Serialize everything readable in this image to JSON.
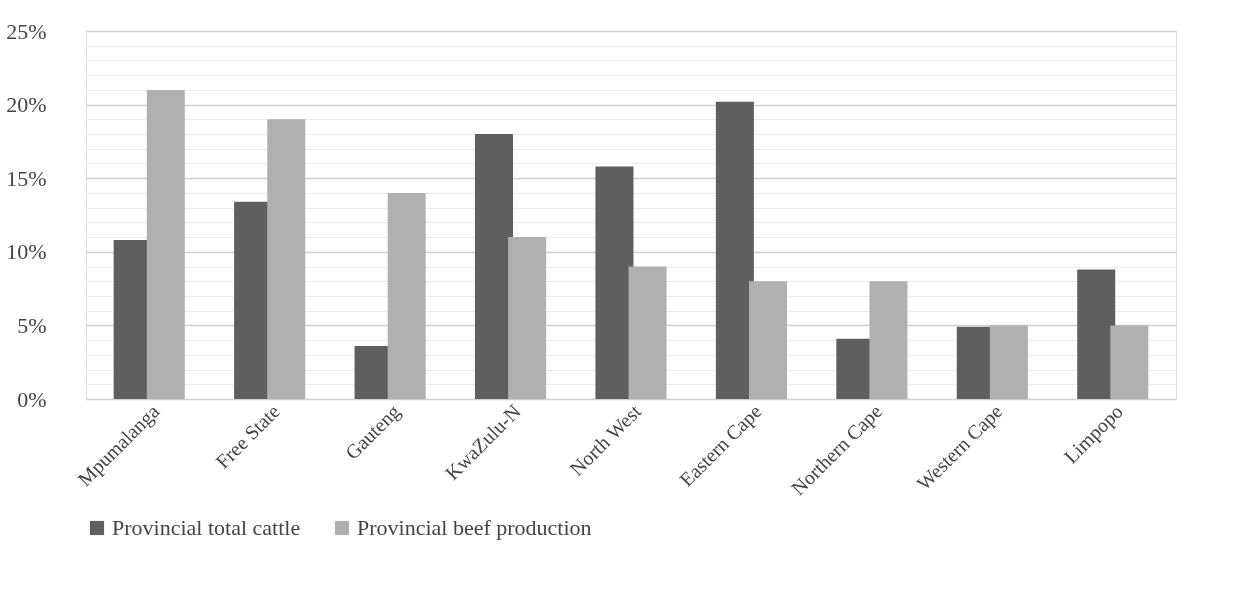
{
  "chart_data": {
    "type": "bar",
    "categories": [
      "Mpumalanga",
      "Free State",
      "Gauteng",
      "KwaZulu-N",
      "North West",
      "Eastern Cape",
      "Northern Cape",
      "Western Cape",
      "Limpopo"
    ],
    "series": [
      {
        "name": "Provincial total cattle",
        "color": "#5f5f5f",
        "values": [
          10.8,
          13.4,
          3.6,
          18.0,
          15.8,
          20.2,
          4.1,
          4.9,
          8.8
        ]
      },
      {
        "name": "Provincial beef production",
        "color": "#b0b0b0",
        "values": [
          21.0,
          19.0,
          14.0,
          11.0,
          9.0,
          8.0,
          8.0,
          5.0,
          5.0
        ]
      }
    ],
    "ylim": [
      0,
      25
    ],
    "yticks": [
      {
        "value": 0,
        "label": "0%"
      },
      {
        "value": 1,
        "label": null
      },
      {
        "value": 2,
        "label": null
      },
      {
        "value": 3,
        "label": null
      },
      {
        "value": 4,
        "label": null
      },
      {
        "value": 5,
        "label": "5%"
      },
      {
        "value": 6,
        "label": null
      },
      {
        "value": 7,
        "label": null
      },
      {
        "value": 8,
        "label": null
      },
      {
        "value": 9,
        "label": null
      },
      {
        "value": 10,
        "label": "10%"
      },
      {
        "value": 11,
        "label": null
      },
      {
        "value": 12,
        "label": null
      },
      {
        "value": 13,
        "label": null
      },
      {
        "value": 14,
        "label": null
      },
      {
        "value": 15,
        "label": "15%"
      },
      {
        "value": 16,
        "label": null
      },
      {
        "value": 17,
        "label": null
      },
      {
        "value": 18,
        "label": null
      },
      {
        "value": 19,
        "label": null
      },
      {
        "value": 20,
        "label": "20%"
      },
      {
        "value": 21,
        "label": null
      },
      {
        "value": 22,
        "label": null
      },
      {
        "value": 23,
        "label": null
      },
      {
        "value": 24,
        "label": null
      },
      {
        "value": 25,
        "label": "25%"
      }
    ],
    "grid": true,
    "legend": "bottom"
  }
}
